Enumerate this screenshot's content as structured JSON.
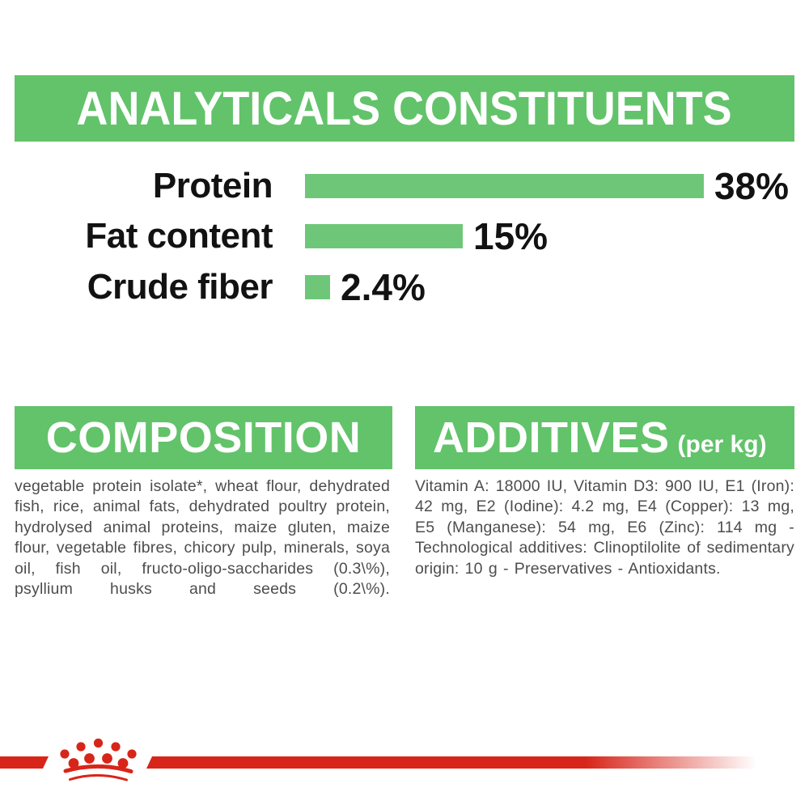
{
  "colors": {
    "green": "#62c36a",
    "bar_green": "#6ec778",
    "red": "#d8251a",
    "body_gray": "#4d4d4d",
    "heading_text": "#ffffff",
    "chart_text": "#121212"
  },
  "header": {
    "title": "ANALYTICALS CONSTITUENTS"
  },
  "chart_data": {
    "type": "bar",
    "orientation": "horizontal",
    "title": "ANALYTICALS CONSTITUENTS",
    "categories": [
      "Protein",
      "Fat content",
      "Crude fiber"
    ],
    "values": [
      38,
      15,
      2.4
    ],
    "value_labels": [
      "38%",
      "15%",
      "2.4%"
    ],
    "unit": "%",
    "xlim": [
      0,
      38
    ],
    "grid": false,
    "legend": false,
    "bar_color": "#6ec778"
  },
  "composition": {
    "title": "COMPOSITION",
    "body": "vegetable protein isolate*, wheat flour, dehydrated fish, rice, animal fats, dehydrated poultry protein, hydrolysed animal proteins, maize gluten, maize flour, vegetable fibres, chicory pulp, minerals, soya oil, fish oil, fructo-oligo-saccharides (0.3\\%), psyllium husks and seeds (0.2\\%)."
  },
  "additives": {
    "title": "ADDITIVES",
    "subtitle": "(per kg)",
    "body": "Vitamin A: 18000 IU, Vitamin D3: 900 IU, E1 (Iron): 42 mg, E2 (Iodine): 4.2 mg, E4 (Copper): 13 mg, E5 (Manganese): 54 mg, E6 (Zinc): 114 mg - Technological additives: Clinoptilolite of sedimentary origin: 10 g - Preservatives - Antioxidants."
  },
  "footer": {
    "brand_logo": "royal-canin-crown"
  }
}
